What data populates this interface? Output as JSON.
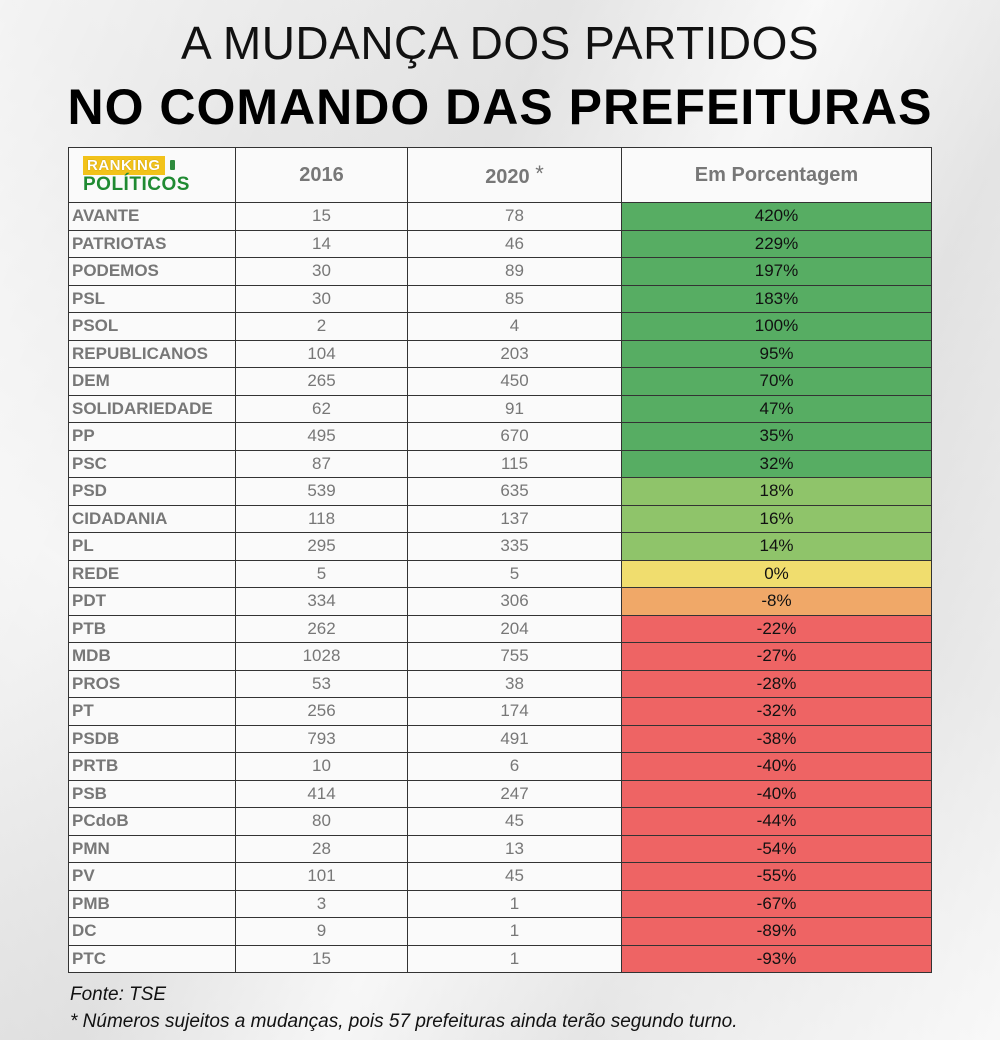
{
  "title_line1": "A MUDANÇA DOS PARTIDOS",
  "title_line2": "NO COMANDO DAS PREFEITURAS",
  "logo": {
    "top": "RANKING",
    "bottom": "POLÍTICOS"
  },
  "colors": {
    "high_green": "#57ad63",
    "mid_green": "#8fc46a",
    "neutral_yellow": "#f0dd6e",
    "orange": "#f0a868",
    "red": "#ee6464"
  },
  "chart_data": {
    "type": "table",
    "columns": [
      "2016",
      "2020",
      "Em Porcentagem"
    ],
    "column_2020_mark": "*",
    "rows": [
      {
        "party": "AVANTE",
        "y2016": "15",
        "y2020": "78",
        "pct": "420%",
        "pct_value": 420
      },
      {
        "party": "PATRIOTAS",
        "y2016": "14",
        "y2020": "46",
        "pct": "229%",
        "pct_value": 229
      },
      {
        "party": "PODEMOS",
        "y2016": "30",
        "y2020": "89",
        "pct": "197%",
        "pct_value": 197
      },
      {
        "party": "PSL",
        "y2016": "30",
        "y2020": "85",
        "pct": "183%",
        "pct_value": 183
      },
      {
        "party": "PSOL",
        "y2016": "2",
        "y2020": "4",
        "pct": "100%",
        "pct_value": 100
      },
      {
        "party": "REPUBLICANOS",
        "y2016": "104",
        "y2020": "203",
        "pct": "95%",
        "pct_value": 95
      },
      {
        "party": "DEM",
        "y2016": "265",
        "y2020": "450",
        "pct": "70%",
        "pct_value": 70
      },
      {
        "party": "SOLIDARIEDADE",
        "y2016": "62",
        "y2020": "91",
        "pct": "47%",
        "pct_value": 47
      },
      {
        "party": "PP",
        "y2016": "495",
        "y2020": "670",
        "pct": "35%",
        "pct_value": 35
      },
      {
        "party": "PSC",
        "y2016": "87",
        "y2020": "115",
        "pct": "32%",
        "pct_value": 32
      },
      {
        "party": "PSD",
        "y2016": "539",
        "y2020": "635",
        "pct": "18%",
        "pct_value": 18
      },
      {
        "party": "CIDADANIA",
        "y2016": "118",
        "y2020": "137",
        "pct": "16%",
        "pct_value": 16
      },
      {
        "party": "PL",
        "y2016": "295",
        "y2020": "335",
        "pct": "14%",
        "pct_value": 14
      },
      {
        "party": "REDE",
        "y2016": "5",
        "y2020": "5",
        "pct": "0%",
        "pct_value": 0
      },
      {
        "party": "PDT",
        "y2016": "334",
        "y2020": "306",
        "pct": "-8%",
        "pct_value": -8
      },
      {
        "party": "PTB",
        "y2016": "262",
        "y2020": "204",
        "pct": "-22%",
        "pct_value": -22
      },
      {
        "party": "MDB",
        "y2016": "1028",
        "y2020": "755",
        "pct": "-27%",
        "pct_value": -27
      },
      {
        "party": "PROS",
        "y2016": "53",
        "y2020": "38",
        "pct": "-28%",
        "pct_value": -28
      },
      {
        "party": "PT",
        "y2016": "256",
        "y2020": "174",
        "pct": "-32%",
        "pct_value": -32
      },
      {
        "party": "PSDB",
        "y2016": "793",
        "y2020": "491",
        "pct": "-38%",
        "pct_value": -38
      },
      {
        "party": "PRTB",
        "y2016": "10",
        "y2020": "6",
        "pct": "-40%",
        "pct_value": -40
      },
      {
        "party": "PSB",
        "y2016": "414",
        "y2020": "247",
        "pct": "-40%",
        "pct_value": -40
      },
      {
        "party": "PCdoB",
        "y2016": "80",
        "y2020": "45",
        "pct": "-44%",
        "pct_value": -44
      },
      {
        "party": "PMN",
        "y2016": "28",
        "y2020": "13",
        "pct": "-54%",
        "pct_value": -54
      },
      {
        "party": "PV",
        "y2016": "101",
        "y2020": "45",
        "pct": "-55%",
        "pct_value": -55
      },
      {
        "party": "PMB",
        "y2016": "3",
        "y2020": "1",
        "pct": "-67%",
        "pct_value": -67
      },
      {
        "party": "DC",
        "y2016": "9",
        "y2020": "1",
        "pct": "-89%",
        "pct_value": -89
      },
      {
        "party": "PTC",
        "y2016": "15",
        "y2020": "1",
        "pct": "-93%",
        "pct_value": -93
      }
    ]
  },
  "footer": {
    "source": "Fonte: TSE",
    "note": "* Números sujeitos a mudanças, pois 57 prefeituras ainda terão segundo turno."
  }
}
